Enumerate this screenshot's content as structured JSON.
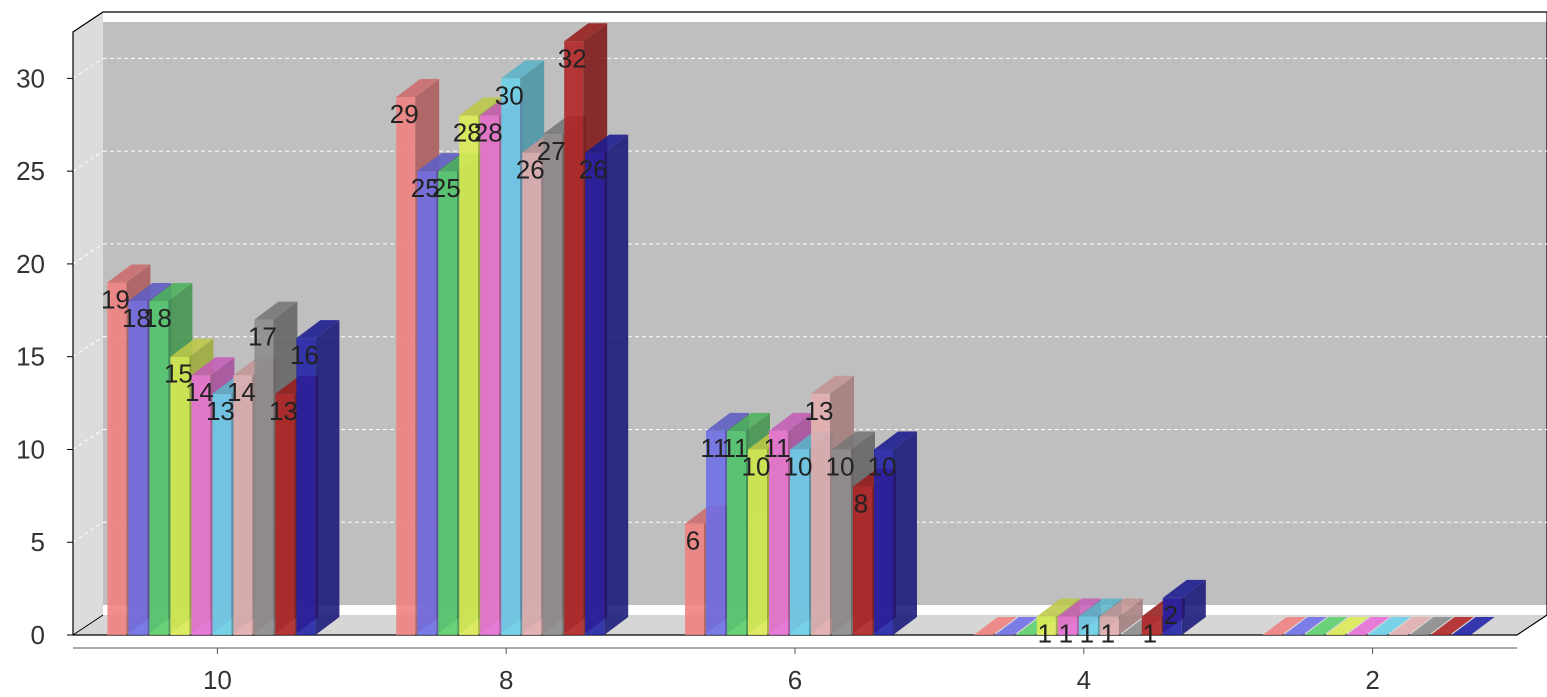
{
  "chart_data": {
    "type": "bar",
    "style": "3d-clustered-column",
    "categories": [
      "10",
      "8",
      "6",
      "4",
      "2"
    ],
    "ylim": [
      0,
      32.5
    ],
    "yticks": [
      "0",
      "5",
      "10",
      "15",
      "20",
      "25",
      "30"
    ],
    "grid": true,
    "legend": "none",
    "title": "",
    "xlabel": "",
    "ylabel": "",
    "series": [
      {
        "color": "#F08080",
        "values": [
          19,
          29,
          6,
          0,
          0
        ]
      },
      {
        "color": "#6F6FE8",
        "values": [
          18,
          25,
          11,
          0,
          0
        ]
      },
      {
        "color": "#5CD16C",
        "values": [
          18,
          25,
          11,
          0,
          0
        ]
      },
      {
        "color": "#DDED55",
        "values": [
          15,
          28,
          10,
          1,
          0
        ]
      },
      {
        "color": "#E86FD8",
        "values": [
          14,
          28,
          11,
          1,
          0
        ]
      },
      {
        "color": "#6BD2EA",
        "values": [
          13,
          30,
          10,
          1,
          0
        ]
      },
      {
        "color": "#E5AFAF",
        "values": [
          14,
          26,
          13,
          1,
          0
        ]
      },
      {
        "color": "#8C8C8C",
        "values": [
          17,
          27,
          10,
          0,
          0
        ]
      },
      {
        "color": "#B22222",
        "values": [
          13,
          32,
          8,
          1,
          0
        ]
      },
      {
        "color": "#2020A8",
        "values": [
          16,
          26,
          10,
          2,
          0
        ]
      }
    ]
  }
}
